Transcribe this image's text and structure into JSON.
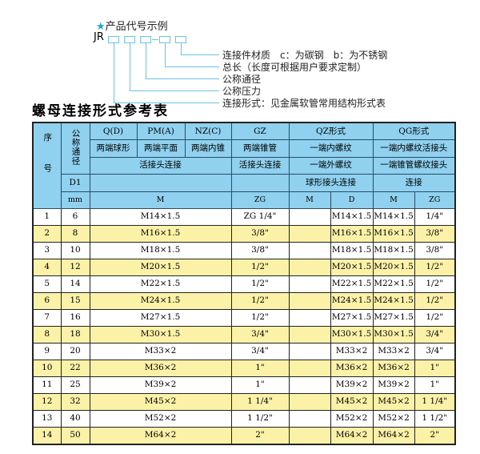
{
  "example": {
    "star": "★",
    "title": "产品代号示例",
    "prefix": "JR",
    "labels": [
      "连接件材质　c：为碳钢　b：为不锈钢",
      "总长（长度可根据用户要求定制）",
      "公称通径",
      "公称压力",
      "连接形式：见金属软管常用结构形式表"
    ]
  },
  "table_title": "螺母连接形式参考表",
  "header": {
    "seq": "序号",
    "dn": "公称通径",
    "d1": "D1",
    "mm": "mm",
    "q": "Q(D)",
    "pm": "PM(A)",
    "nz": "NZ(C)",
    "gz": "GZ",
    "qz": "QZ形式",
    "qg": "QG形式",
    "q2": "两端球形",
    "pm2": "两端平面",
    "nz2": "两端内锥",
    "gz2": "两端锥管",
    "qz2": "一端内螺纹",
    "qg2": "一端内螺纹活接头",
    "live": "活接头连接",
    "gz3": "活接头连接",
    "qz3": "一端外螺纹",
    "qg3": "一端锥管螺纹接头",
    "qz4": "球形接头连接",
    "qg4": "连接",
    "m": "M",
    "zg": "ZG",
    "qzm": "M",
    "qzd": "D",
    "qgm": "M",
    "qgzg": "ZG"
  },
  "rows": [
    [
      "1",
      "6",
      "M14×1.5",
      "ZG 1/4\"",
      "",
      "M14×1.5",
      "M14×1.5",
      "1/4\""
    ],
    [
      "2",
      "8",
      "M16×1.5",
      "3/8\"",
      "",
      "M16×1.5",
      "M16×1.5",
      "3/8\""
    ],
    [
      "3",
      "10",
      "M18×1.5",
      "3/8\"",
      "",
      "M18×1.5",
      "M18×1.5",
      "3/8\""
    ],
    [
      "4",
      "12",
      "M20×1.5",
      "1/2\"",
      "",
      "M20×1.5",
      "M20×1.5",
      "1/2\""
    ],
    [
      "5",
      "14",
      "M22×1.5",
      "1/2\"",
      "",
      "M22×1.5",
      "M22×1.5",
      "1/2\""
    ],
    [
      "6",
      "15",
      "M24×1.5",
      "1/2\"",
      "",
      "M24×1.5",
      "M24×1.5",
      "1/2\""
    ],
    [
      "7",
      "16",
      "M27×1.5",
      "1/2\"",
      "",
      "M27×1.5",
      "M27×1.5",
      "1/2\""
    ],
    [
      "8",
      "18",
      "M30×1.5",
      "3/4\"",
      "",
      "M30×1.5",
      "M30×1.5",
      "3/4\""
    ],
    [
      "9",
      "20",
      "M33×2",
      "3/4\"",
      "",
      "M33×2",
      "M33×2",
      "3/4\""
    ],
    [
      "10",
      "22",
      "M36×2",
      "1\"",
      "",
      "M36×2",
      "M36×2",
      "1\""
    ],
    [
      "11",
      "25",
      "M39×2",
      "1\"",
      "",
      "M39×2",
      "M39×2",
      "1\""
    ],
    [
      "12",
      "32",
      "M45×2",
      "1 1/4\"",
      "",
      "M45×2",
      "M45×2",
      "1 1/4\""
    ],
    [
      "13",
      "40",
      "M52×2",
      "1 1/2\"",
      "",
      "M52×2",
      "M52×2",
      "1 1/2\""
    ],
    [
      "14",
      "50",
      "M64×2",
      "2\"",
      "",
      "M64×2",
      "M64×2",
      "2\""
    ]
  ]
}
